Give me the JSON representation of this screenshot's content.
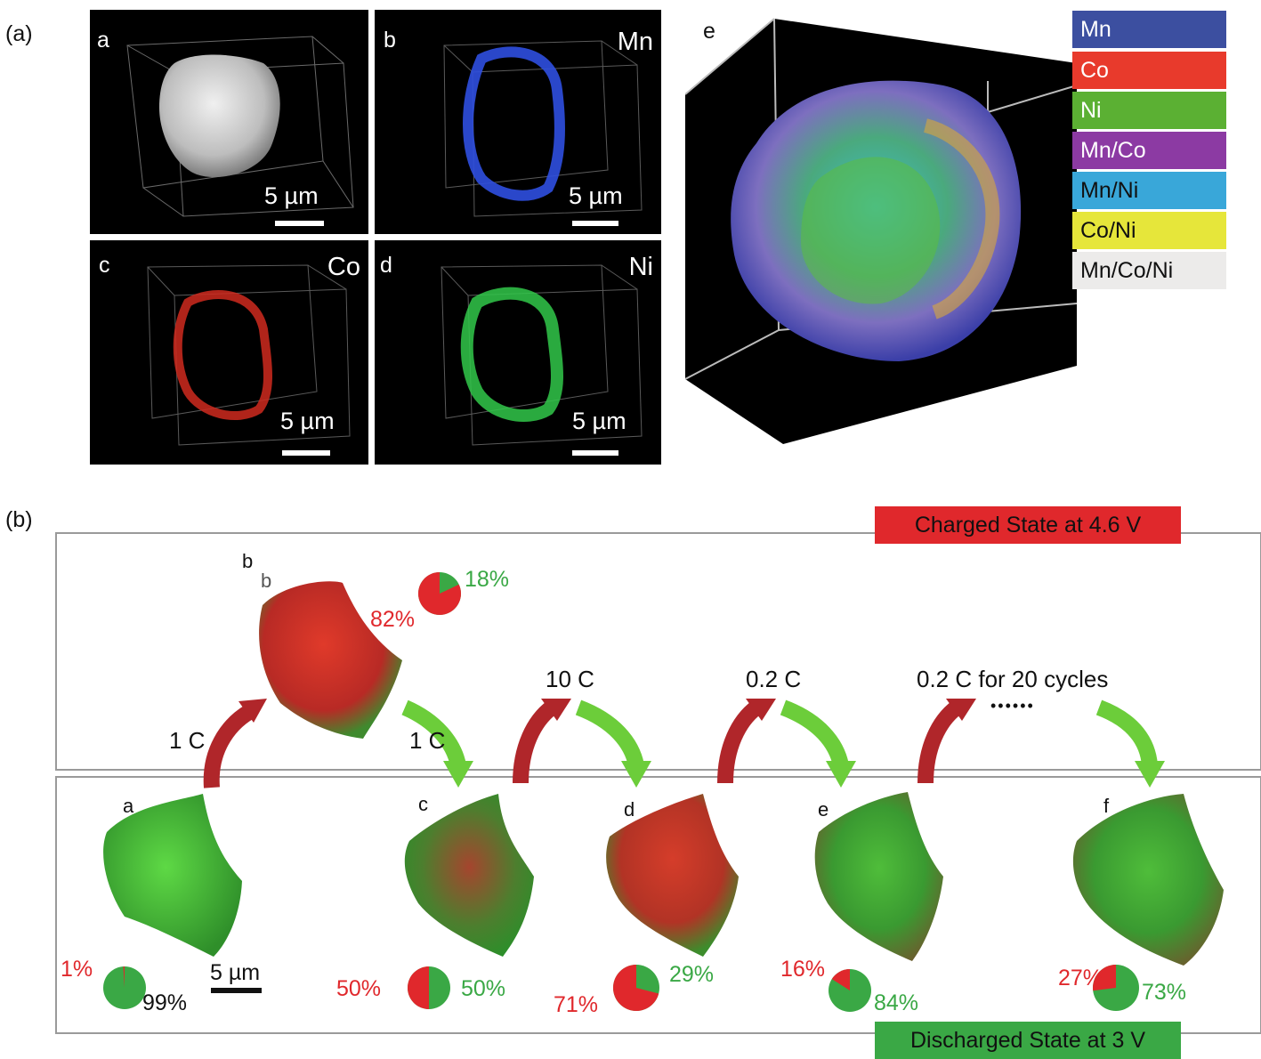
{
  "part_a": {
    "label": "(a)",
    "panels": [
      {
        "letter": "a",
        "element": "",
        "scale": "5 µm"
      },
      {
        "letter": "b",
        "element": "Mn",
        "scale": "5 µm"
      },
      {
        "letter": "c",
        "element": "Co",
        "scale": "5 µm"
      },
      {
        "letter": "d",
        "element": "Ni",
        "scale": "5 µm"
      }
    ],
    "panel_e": {
      "letter": "e",
      "legend": [
        {
          "label": "Mn",
          "color": "#3c4fa0"
        },
        {
          "label": "Co",
          "color": "#e83a2c"
        },
        {
          "label": "Ni",
          "color": "#5bb033"
        },
        {
          "label": "Mn/Co",
          "color": "#8c3aa3"
        },
        {
          "label": "Mn/Ni",
          "color": "#39a7d9"
        },
        {
          "label": "Co/Ni",
          "color": "#e6e63a"
        },
        {
          "label": "Mn/Co/Ni",
          "color": "#ecebea"
        }
      ]
    }
  },
  "part_b": {
    "label": "(b)",
    "charged_state": "Charged State at 4.6 V",
    "discharged_state": "Discharged State at 3 V",
    "scale": "5 µm",
    "particles": [
      {
        "letter": "a",
        "red_pct": "1%",
        "green_pct": "99%",
        "red_fraction": 0.01
      },
      {
        "letter": "b",
        "red_pct": "82%",
        "green_pct": "18%",
        "red_fraction": 0.82
      },
      {
        "letter": "c",
        "red_pct": "50%",
        "green_pct": "50%",
        "red_fraction": 0.5
      },
      {
        "letter": "d",
        "red_pct": "71%",
        "green_pct": "29%",
        "red_fraction": 0.71
      },
      {
        "letter": "e",
        "red_pct": "16%",
        "green_pct": "84%",
        "red_fraction": 0.16
      },
      {
        "letter": "f",
        "red_pct": "27%",
        "green_pct": "73%",
        "red_fraction": 0.27
      }
    ],
    "particle_b_inner_label": "b",
    "rates": {
      "charge_1": "1 C",
      "discharge_1": "1 C",
      "rate_10c": "10 C",
      "rate_02c": "0.2 C",
      "rate_cycles": "0.2 C for 20 cycles",
      "ellipsis": "••••••"
    },
    "colors": {
      "red": "#e0282c",
      "green": "#3aa845",
      "arrow_red": "#b0262a",
      "arrow_green": "#6ccd3a"
    }
  }
}
